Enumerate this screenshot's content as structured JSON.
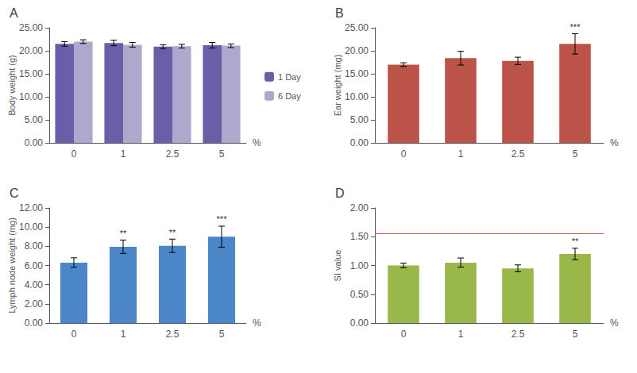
{
  "chart_data": [
    {
      "type": "bar",
      "title": "A",
      "categories": [
        "0",
        "1",
        "2.5",
        "5"
      ],
      "series": [
        {
          "name": "1 Day",
          "color": "#6b5ea8",
          "values": [
            21.5,
            21.7,
            20.9,
            21.2
          ],
          "errors": [
            0.5,
            0.6,
            0.4,
            0.6
          ]
        },
        {
          "name": "6 Day",
          "color": "#b0a8cc",
          "values": [
            22.0,
            21.3,
            21.0,
            21.1
          ],
          "errors": [
            0.4,
            0.5,
            0.4,
            0.4
          ]
        }
      ],
      "ylabel": "Body weight (g)",
      "xlabel": "%",
      "ylim": [
        0,
        25
      ],
      "yticks": [
        {
          "value": 0.0,
          "label": "0.00"
        },
        {
          "value": 5.0,
          "label": "5.00"
        },
        {
          "value": 10.0,
          "label": "10.00"
        },
        {
          "value": 15.0,
          "label": "15.00"
        },
        {
          "value": 20.0,
          "label": "20.00"
        },
        {
          "value": 25.0,
          "label": "25.00"
        }
      ],
      "legend": "right",
      "grid": false
    },
    {
      "type": "bar",
      "title": "B",
      "categories": [
        "0",
        "1",
        "2.5",
        "5"
      ],
      "values": [
        17.0,
        18.4,
        17.8,
        21.5
      ],
      "errors": [
        0.4,
        1.5,
        0.8,
        2.2
      ],
      "color": "#bc5349",
      "significance": [
        null,
        null,
        null,
        "***"
      ],
      "ylabel": "Ear weight (mg)",
      "xlabel": "%",
      "ylim": [
        0,
        25
      ],
      "yticks": [
        {
          "value": 0.0,
          "label": "0.00"
        },
        {
          "value": 5.0,
          "label": "5.00"
        },
        {
          "value": 10.0,
          "label": "10.00"
        },
        {
          "value": 15.0,
          "label": "15.00"
        },
        {
          "value": 20.0,
          "label": "20.00"
        },
        {
          "value": 25.0,
          "label": "25.00"
        }
      ],
      "grid": false
    },
    {
      "type": "bar",
      "title": "C",
      "categories": [
        "0",
        "1",
        "2.5",
        "5"
      ],
      "values": [
        6.3,
        7.95,
        8.05,
        9.0
      ],
      "errors": [
        0.5,
        0.7,
        0.7,
        1.1
      ],
      "color": "#4a86c8",
      "significance": [
        null,
        "**",
        "**",
        "***"
      ],
      "ylabel": "Lymph node weight (mg)",
      "xlabel": "%",
      "ylim": [
        0,
        12
      ],
      "yticks": [
        {
          "value": 0.0,
          "label": "0.00"
        },
        {
          "value": 2.0,
          "label": "2.00"
        },
        {
          "value": 4.0,
          "label": "4.00"
        },
        {
          "value": 6.0,
          "label": "6.00"
        },
        {
          "value": 8.0,
          "label": "8.00"
        },
        {
          "value": 10.0,
          "label": "10.00"
        },
        {
          "value": 12.0,
          "label": "12.00"
        }
      ],
      "grid": false
    },
    {
      "type": "bar",
      "title": "D",
      "categories": [
        "0",
        "1",
        "2.5",
        "5"
      ],
      "values": [
        1.0,
        1.05,
        0.95,
        1.2
      ],
      "errors": [
        0.04,
        0.08,
        0.06,
        0.1
      ],
      "color": "#9ab84a",
      "significance": [
        null,
        null,
        null,
        "**"
      ],
      "reference_line": {
        "value": 1.55,
        "color": "#c05050"
      },
      "ylabel": "SI value",
      "xlabel": "%",
      "ylim": [
        0,
        2.0
      ],
      "yticks": [
        {
          "value": 0.0,
          "label": "0.00"
        },
        {
          "value": 0.5,
          "label": "0.50"
        },
        {
          "value": 1.0,
          "label": "1.00"
        },
        {
          "value": 1.5,
          "label": "1.50"
        },
        {
          "value": 2.0,
          "label": "2.00"
        }
      ],
      "grid": false
    }
  ]
}
